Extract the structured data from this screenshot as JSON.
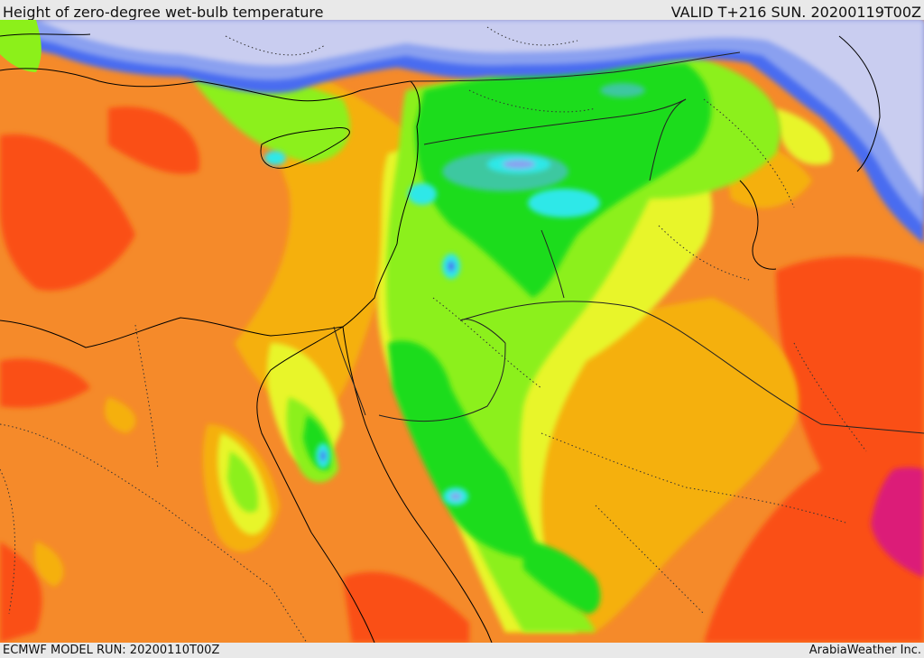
{
  "header": {
    "title": "Height of zero-degree wet-bulb temperature",
    "valid": "VALID T+216 SUN. 20200119T00Z"
  },
  "footer": {
    "model_run": "ECMWF MODEL RUN: 20200110T00Z",
    "provider": "ArabiaWeather Inc."
  },
  "colors": {
    "sea_cold": "#c9cdf0",
    "blue_light": "#8aa0f0",
    "blue": "#4a6cf0",
    "cyan": "#2ee8e8",
    "teal": "#3cc8a0",
    "green": "#1fdc1f",
    "light_green": "#8cf01a",
    "yellow": "#e8f52a",
    "amber": "#f5b00a",
    "orange": "#f58a2a",
    "red_orange": "#fa5014",
    "magenta": "#dc1e78"
  }
}
